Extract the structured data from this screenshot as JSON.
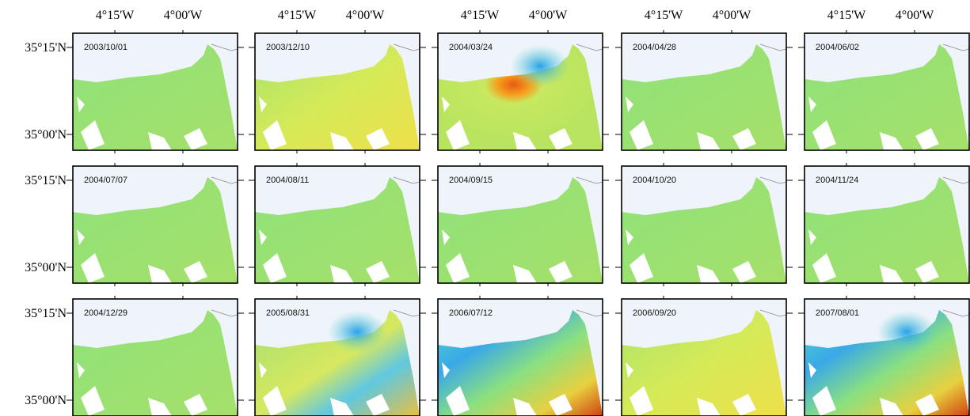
{
  "x_labels": [
    "4°15'W",
    "4°00'W"
  ],
  "y_labels": [
    "35°15'N",
    "35°00'N"
  ],
  "panels": [
    {
      "date": "2003/10/01"
    },
    {
      "date": "2003/12/10"
    },
    {
      "date": "2004/03/24"
    },
    {
      "date": "2004/04/28"
    },
    {
      "date": "2004/06/02"
    },
    {
      "date": "2004/07/07"
    },
    {
      "date": "2004/08/11"
    },
    {
      "date": "2004/09/15"
    },
    {
      "date": "2004/10/20"
    },
    {
      "date": "2004/11/24"
    },
    {
      "date": "2004/12/29"
    },
    {
      "date": "2005/08/31"
    },
    {
      "date": "2006/07/12"
    },
    {
      "date": "2006/09/20"
    },
    {
      "date": "2007/08/01"
    }
  ]
}
